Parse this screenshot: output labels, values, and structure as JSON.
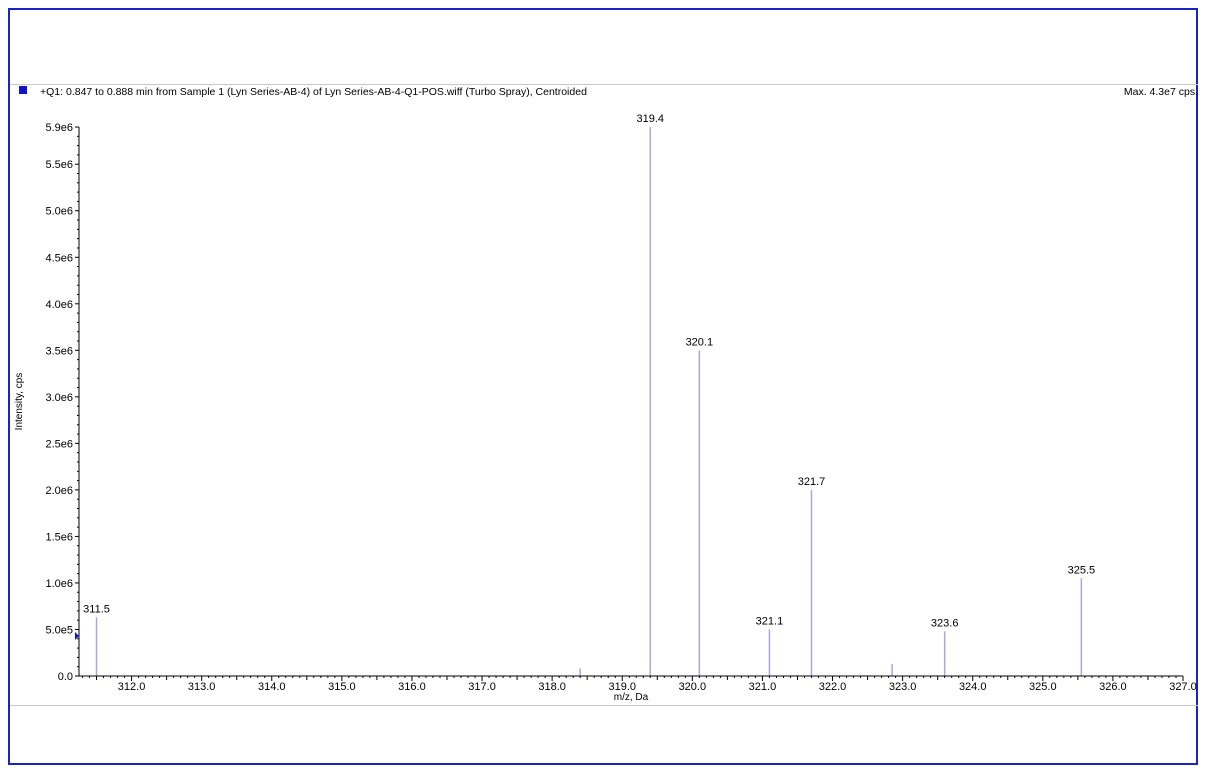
{
  "header": {
    "title": "+Q1: 0.847 to 0.888 min from Sample 1 (Lyn Series-AB-4) of Lyn Series-AB-4-Q1-POS.wiff (Turbo Spray), Centroided",
    "max_label": "Max. 4.3e7 cps."
  },
  "colors": {
    "frame": "#1a22c8",
    "peak": "#a8a8dc",
    "marker": "#1212cc",
    "axis": "#000000"
  },
  "chart_data": {
    "type": "bar",
    "title": "+Q1: 0.847 to 0.888 min from Sample 1 (Lyn Series-AB-4) of Lyn Series-AB-4-Q1-POS.wiff (Turbo Spray), Centroided",
    "xlabel": "m/z, Da",
    "ylabel": "Intensity, cps",
    "xlim": [
      311.25,
      327.0
    ],
    "ylim": [
      0,
      5900000.0
    ],
    "x_ticks": [
      312.0,
      313.0,
      314.0,
      315.0,
      316.0,
      317.0,
      318.0,
      319.0,
      320.0,
      321.0,
      322.0,
      323.0,
      324.0,
      325.0,
      326.0,
      327.0
    ],
    "x_tick_labels": [
      "312.0",
      "313.0",
      "314.0",
      "315.0",
      "316.0",
      "317.0",
      "318.0",
      "319.0",
      "320.0",
      "321.0",
      "322.0",
      "323.0",
      "324.0",
      "325.0",
      "326.0",
      "327.0"
    ],
    "y_ticks": [
      0,
      500000.0,
      1000000.0,
      1500000.0,
      2000000.0,
      2500000.0,
      3000000.0,
      3500000.0,
      4000000.0,
      4500000.0,
      5000000.0,
      5500000.0,
      5900000.0
    ],
    "y_tick_labels": [
      "0.0",
      "5.0e5",
      "1.0e6",
      "1.5e6",
      "2.0e6",
      "2.5e6",
      "3.0e6",
      "3.5e6",
      "4.0e6",
      "4.5e6",
      "5.0e6",
      "5.5e6",
      "5.9e6"
    ],
    "peaks": [
      {
        "mz": 311.5,
        "intensity": 630000.0,
        "label": "311.5"
      },
      {
        "mz": 318.4,
        "intensity": 80000.0,
        "label": ""
      },
      {
        "mz": 319.4,
        "intensity": 5900000.0,
        "label": "319.4"
      },
      {
        "mz": 320.1,
        "intensity": 3500000.0,
        "label": "320.1"
      },
      {
        "mz": 321.1,
        "intensity": 500000.0,
        "label": "321.1"
      },
      {
        "mz": 321.7,
        "intensity": 2000000.0,
        "label": "321.7"
      },
      {
        "mz": 322.85,
        "intensity": 130000.0,
        "label": ""
      },
      {
        "mz": 323.6,
        "intensity": 480000.0,
        "label": "323.6"
      },
      {
        "mz": 325.55,
        "intensity": 1050000.0,
        "label": "325.5"
      }
    ],
    "grid": false,
    "legend": "none"
  }
}
